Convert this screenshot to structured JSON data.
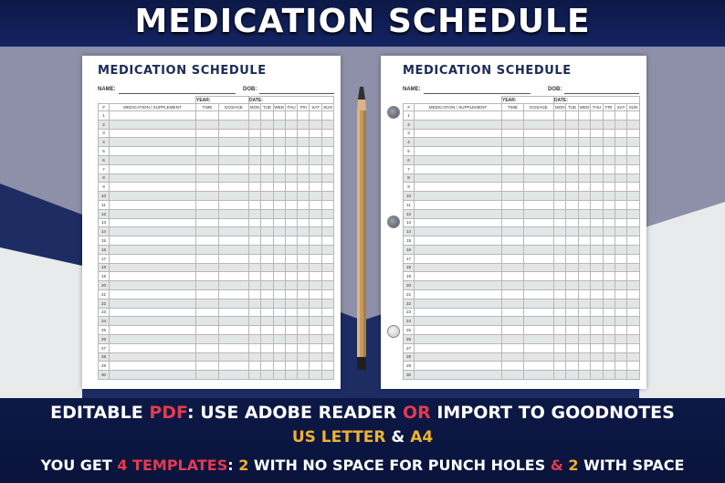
{
  "banner": {
    "title": "MEDICATION SCHEDULE"
  },
  "sheet": {
    "title": "MEDICATION SCHEDULE",
    "name_label": "NAME:",
    "dob_label": "DOB:",
    "year_label": "YEAR:",
    "date_label": "DATE:",
    "columns": [
      "#",
      "MEDICATION / SUPPLEMENT",
      "TIME",
      "DOSAGE",
      "MON",
      "TUE",
      "WED",
      "THU",
      "FRI",
      "SAT",
      "SUN"
    ],
    "rows": [
      "1",
      "2",
      "3",
      "4",
      "5",
      "6",
      "7",
      "8",
      "9",
      "10",
      "11",
      "12",
      "13",
      "14",
      "15",
      "16",
      "17",
      "18",
      "19",
      "20",
      "21",
      "22",
      "23",
      "24",
      "25",
      "26",
      "27",
      "28",
      "29",
      "30"
    ]
  },
  "footer": {
    "line1": {
      "a": "EDITABLE ",
      "b": "PDF",
      "c": ": USE ADOBE READER ",
      "d": "OR",
      "e": " IMPORT TO GOODNOTES"
    },
    "line2": {
      "a": "US LETTER",
      "b": " & ",
      "c": "A4"
    },
    "line3": {
      "a": "YOU GET ",
      "b": "4 TEMPLATES",
      "c": ":  ",
      "d": "2",
      "e": "  WITH NO SPACE FOR PUNCH HOLES  ",
      "f": "&",
      "g": "  ",
      "h": "2",
      "i": " WITH SPACE"
    }
  },
  "colors": {
    "navy": "#0c1846",
    "red": "#e23b4e",
    "gold": "#f0b22e",
    "header_text": "#1b2b58",
    "row_shade": "#e3e6e6"
  }
}
